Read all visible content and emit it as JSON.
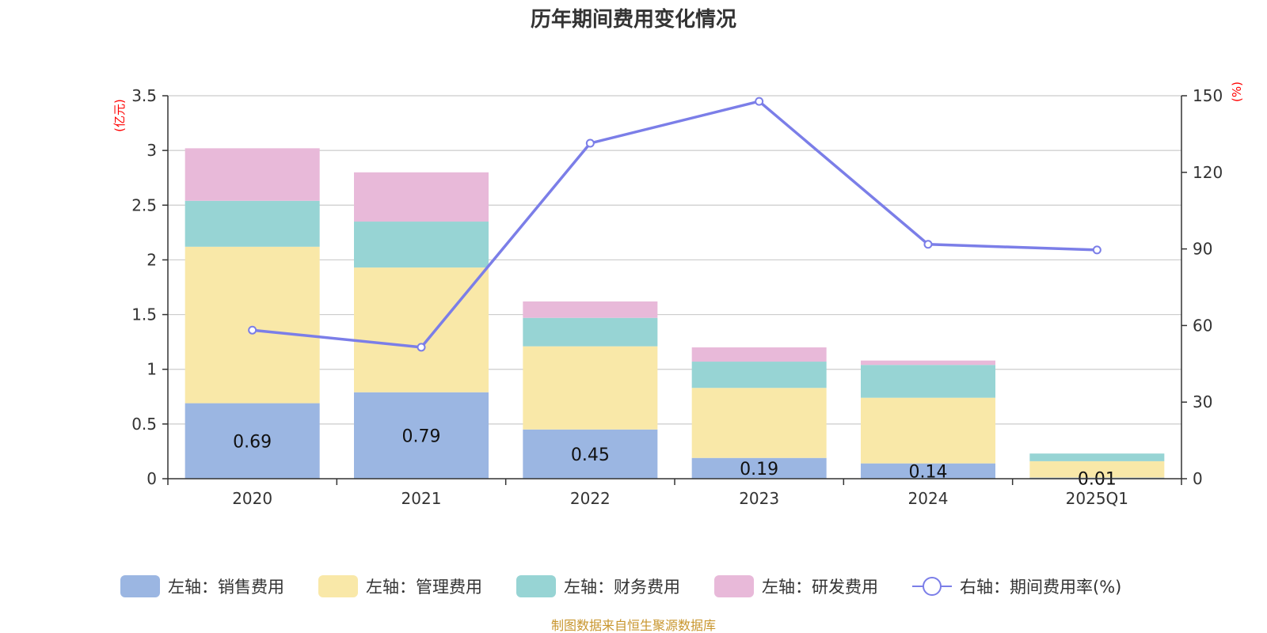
{
  "chart_data": {
    "type": "bar",
    "title": "历年期间费用变化情况",
    "categories": [
      "2020",
      "2021",
      "2022",
      "2023",
      "2024",
      "2025Q1"
    ],
    "left_axis": {
      "unit": "(亿元)",
      "ylim": [
        0,
        3.5
      ],
      "ticks": [
        "0",
        "0.5",
        "1",
        "1.5",
        "2",
        "2.5",
        "3",
        "3.5"
      ]
    },
    "right_axis": {
      "unit": "(%)",
      "ylim": [
        0,
        150
      ],
      "ticks": [
        "0",
        "30",
        "60",
        "90",
        "120",
        "150"
      ]
    },
    "series": [
      {
        "name": "左轴：销售费用",
        "kind": "bar",
        "color": "#9bb6e2",
        "values": [
          0.69,
          0.79,
          0.45,
          0.19,
          0.14,
          0.01
        ],
        "labels": [
          "0.69",
          "0.79",
          "0.45",
          "0.19",
          "0.14",
          "0.01"
        ]
      },
      {
        "name": "左轴：管理费用",
        "kind": "bar",
        "color": "#f9e8a8",
        "values": [
          1.43,
          1.14,
          0.76,
          0.64,
          0.6,
          0.15
        ]
      },
      {
        "name": "左轴：财务费用",
        "kind": "bar",
        "color": "#97d4d4",
        "values": [
          0.42,
          0.42,
          0.26,
          0.24,
          0.3,
          0.07
        ]
      },
      {
        "name": "左轴：研发费用",
        "kind": "bar",
        "color": "#e8b9d9",
        "values": [
          0.48,
          0.45,
          0.15,
          0.13,
          0.04,
          0.0
        ]
      },
      {
        "name": "右轴：期间费用率(%)",
        "kind": "line",
        "color": "#7b7ee8",
        "values": [
          58.2,
          51.5,
          131.4,
          147.8,
          91.8,
          89.6
        ]
      }
    ],
    "grid": true,
    "legend_position": "bottom"
  },
  "source_note": "制图数据来自恒生聚源数据库"
}
